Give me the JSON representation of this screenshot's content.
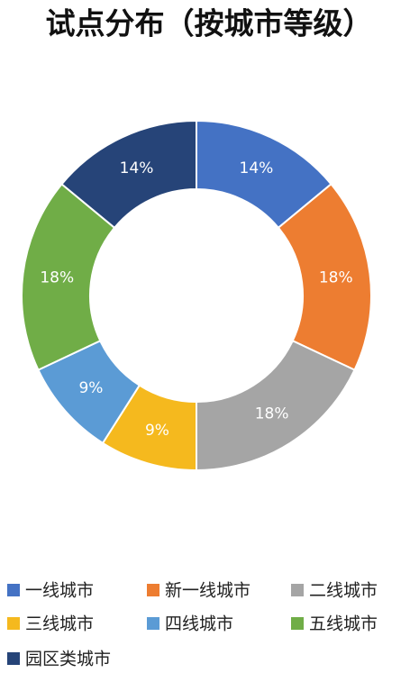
{
  "chart_data": {
    "type": "pie",
    "title": "试点分布（按城市等级）",
    "categories": [
      "一线城市",
      "新一线城市",
      "二线城市",
      "三线城市",
      "四线城市",
      "五线城市",
      "园区类城市"
    ],
    "values": [
      14,
      18,
      18,
      9,
      9,
      18,
      14
    ],
    "value_labels": [
      "14%",
      "18%",
      "18%",
      "9%",
      "9%",
      "18%",
      "14%"
    ],
    "colors": [
      "#4472c4",
      "#ed7d31",
      "#a5a5a5",
      "#f5b91e",
      "#5b9bd5",
      "#70ad47",
      "#264478"
    ]
  }
}
